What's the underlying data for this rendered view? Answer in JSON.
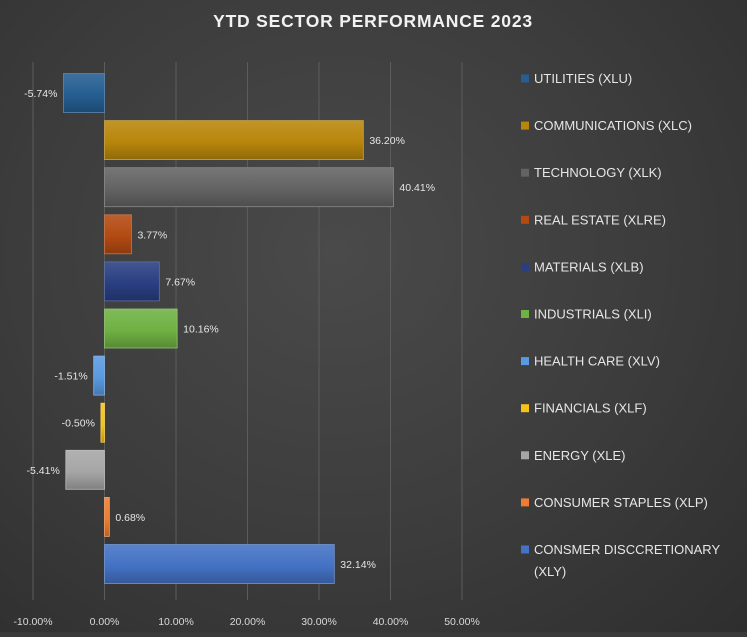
{
  "chart_data": {
    "type": "bar",
    "orientation": "horizontal",
    "title": "YTD SECTOR PERFORMANCE 2023",
    "xlim": [
      -10,
      50
    ],
    "x_ticks": [
      -10,
      0,
      10,
      20,
      30,
      40,
      50
    ],
    "x_tick_labels": [
      "-10.00%",
      "0.00%",
      "10.00%",
      "20.00%",
      "30.00%",
      "40.00%",
      "50.00%"
    ],
    "grid": true,
    "legend_position": "right",
    "series": [
      {
        "name": "UTILITIES (XLU)",
        "value": -5.74,
        "label": "-5.74%",
        "color": "#255e91"
      },
      {
        "name": "COMMUNICATIONS (XLC)",
        "value": 36.2,
        "label": "36.20%",
        "color": "#b8860b"
      },
      {
        "name": "TECHNOLOGY (XLK)",
        "value": 40.41,
        "label": "40.41%",
        "color": "#636363"
      },
      {
        "name": "REAL ESTATE (XLRE)",
        "value": 3.77,
        "label": "3.77%",
        "color": "#b34a12"
      },
      {
        "name": "MATERIALS (XLB)",
        "value": 7.67,
        "label": "7.67%",
        "color": "#2a3f82"
      },
      {
        "name": "INDUSTRIALS (XLI)",
        "value": 10.16,
        "label": "10.16%",
        "color": "#6fb143"
      },
      {
        "name": "HEALTH CARE (XLV)",
        "value": -1.51,
        "label": "-1.51%",
        "color": "#5a9ae0"
      },
      {
        "name": "FINANCIALS (XLF)",
        "value": -0.5,
        "label": "-0.50%",
        "color": "#f5c218"
      },
      {
        "name": "ENERGY (XLE)",
        "value": -5.41,
        "label": "-5.41%",
        "color": "#a6a6a6"
      },
      {
        "name": "CONSUMER STAPLES (XLP)",
        "value": 0.68,
        "label": "0.68%",
        "color": "#ed7d31"
      },
      {
        "name": "CONSMER DISCCRETIONARY (XLY)",
        "value": 32.14,
        "label": "32.14%",
        "color": "#4472c4"
      }
    ]
  }
}
